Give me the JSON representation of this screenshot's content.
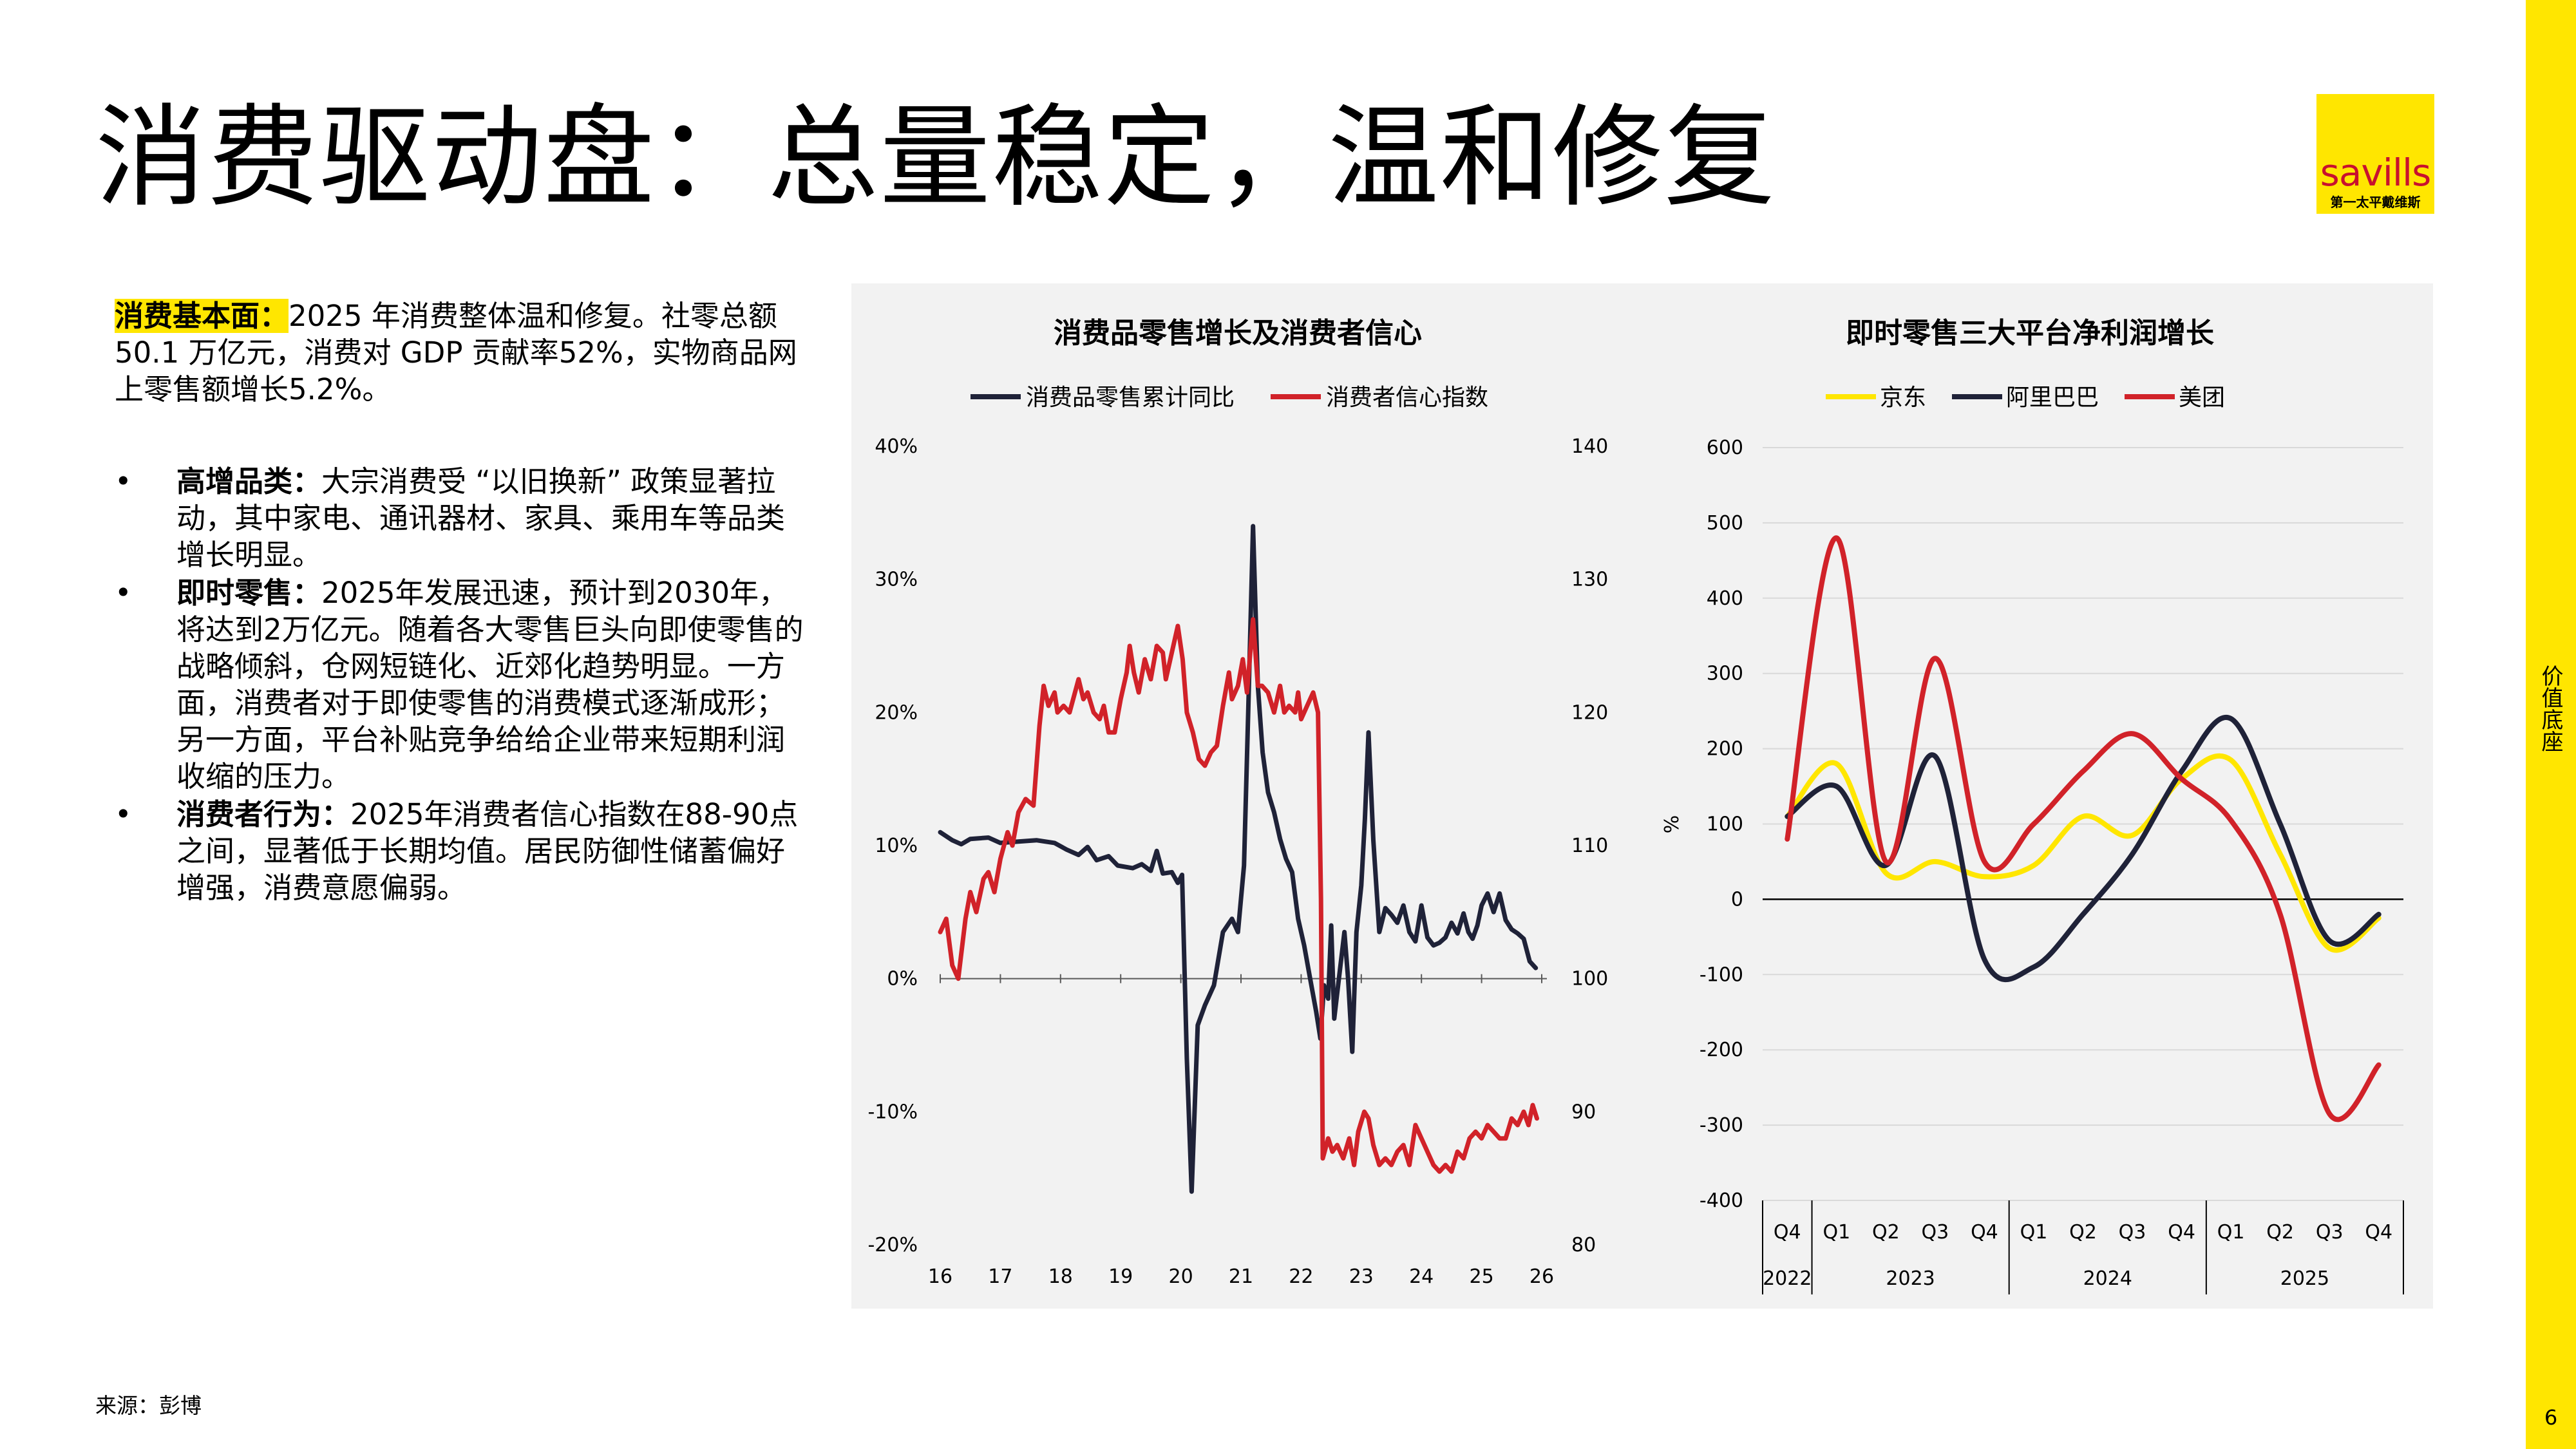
{
  "page": {
    "title": "消费驱动盘：总量稳定，温和修复",
    "source": "来源：彭博",
    "sidebar_text": "价值底座",
    "page_number": "6"
  },
  "logo": {
    "brand": "savills",
    "sub": "第一太平戴维斯",
    "color": "#ffe600"
  },
  "left": {
    "intro_label": "消费基本面：",
    "intro_text": "2025 年消费整体温和修复。社零总额50.1 万亿元，消费对 GDP 贡献率52%，实物商品网上零售额增长5.2%。",
    "bullets": [
      {
        "label": "高增品类：",
        "text": "大宗消费受 “以旧换新” 政策显著拉动，其中家电、通讯器材、家具、乘用车等品类增长明显。"
      },
      {
        "label": "即时零售：",
        "text": "2025年发展迅速，预计到2030年，将达到2万亿元。随着各大零售巨头向即使零售的战略倾斜，仓网短链化、近郊化趋势明显。一方面，消费者对于即使零售的消费模式逐渐成形；另一方面，平台补贴竞争给给企业带来短期利润收缩的压力。"
      },
      {
        "label": "消费者行为：",
        "text": "2025年消费者信心指数在88-90点之间，显著低于长期均值。居民防御性储蓄偏好增强，消费意愿偏弱。"
      }
    ],
    "bullet_symbol": "•"
  },
  "chart_data": [
    {
      "type": "line",
      "title": "消费品零售增长及消费者信心",
      "x_tick_labels": [
        "16",
        "17",
        "18",
        "19",
        "20",
        "21",
        "22",
        "23",
        "24",
        "25",
        "26"
      ],
      "xlim": [
        2016,
        2026
      ],
      "y_left": {
        "ylim": [
          -20,
          40
        ],
        "tick_labels": [
          "-20%",
          "-10%",
          "0%",
          "10%",
          "20%",
          "30%",
          "40%"
        ]
      },
      "y_right": {
        "ylim": [
          80,
          140
        ],
        "tick_labels": [
          "80",
          "90",
          "100",
          "110",
          "120",
          "130",
          "140"
        ]
      },
      "legend_position": "top",
      "series": [
        {
          "name": "消费品零售累计同比",
          "color": "#1f2238",
          "axis": "left",
          "points": [
            [
              2016.0,
              11
            ],
            [
              2016.2,
              10.4
            ],
            [
              2016.35,
              10.1
            ],
            [
              2016.5,
              10.5
            ],
            [
              2016.8,
              10.6
            ],
            [
              2017.0,
              10.2
            ],
            [
              2017.3,
              10.3
            ],
            [
              2017.6,
              10.4
            ],
            [
              2017.9,
              10.2
            ],
            [
              2018.1,
              9.7
            ],
            [
              2018.3,
              9.3
            ],
            [
              2018.45,
              9.9
            ],
            [
              2018.6,
              8.9
            ],
            [
              2018.8,
              9.2
            ],
            [
              2018.95,
              8.5
            ],
            [
              2019.2,
              8.3
            ],
            [
              2019.35,
              8.6
            ],
            [
              2019.5,
              8.1
            ],
            [
              2019.6,
              9.6
            ],
            [
              2019.7,
              7.9
            ],
            [
              2019.85,
              8.0
            ],
            [
              2019.95,
              7.2
            ],
            [
              2020.02,
              7.8
            ],
            [
              2020.1,
              -6.0
            ],
            [
              2020.18,
              -16
            ],
            [
              2020.28,
              -3.5
            ],
            [
              2020.4,
              -2.0
            ],
            [
              2020.55,
              -0.5
            ],
            [
              2020.7,
              3.5
            ],
            [
              2020.85,
              4.5
            ],
            [
              2020.95,
              3.5
            ],
            [
              2021.05,
              8.5
            ],
            [
              2021.12,
              20
            ],
            [
              2021.2,
              34
            ],
            [
              2021.28,
              22
            ],
            [
              2021.36,
              17
            ],
            [
              2021.45,
              14
            ],
            [
              2021.55,
              12.5
            ],
            [
              2021.65,
              10.5
            ],
            [
              2021.75,
              9
            ],
            [
              2021.85,
              8
            ],
            [
              2021.95,
              4.5
            ],
            [
              2022.05,
              2.5
            ],
            [
              2022.15,
              0
            ],
            [
              2022.25,
              -2.5
            ],
            [
              2022.32,
              -4.5
            ],
            [
              2022.38,
              -0.5
            ],
            [
              2022.45,
              -1.5
            ],
            [
              2022.5,
              4
            ],
            [
              2022.55,
              -3
            ],
            [
              2022.62,
              -0.3
            ],
            [
              2022.72,
              3.5
            ],
            [
              2022.78,
              0
            ],
            [
              2022.85,
              -5.5
            ],
            [
              2022.92,
              3.5
            ],
            [
              2023.0,
              7
            ],
            [
              2023.06,
              12
            ],
            [
              2023.12,
              18.5
            ],
            [
              2023.2,
              10.4
            ],
            [
              2023.3,
              3.5
            ],
            [
              2023.4,
              5.3
            ],
            [
              2023.5,
              4.8
            ],
            [
              2023.6,
              4.2
            ],
            [
              2023.7,
              5.5
            ],
            [
              2023.8,
              3.5
            ],
            [
              2023.9,
              2.8
            ],
            [
              2024.0,
              5.5
            ],
            [
              2024.1,
              3.1
            ],
            [
              2024.2,
              2.5
            ],
            [
              2024.3,
              2.7
            ],
            [
              2024.4,
              3.1
            ],
            [
              2024.5,
              4.2
            ],
            [
              2024.6,
              3.4
            ],
            [
              2024.7,
              4.9
            ],
            [
              2024.78,
              3.5
            ],
            [
              2024.85,
              3.0
            ],
            [
              2024.93,
              4.0
            ],
            [
              2025.0,
              5.5
            ],
            [
              2025.1,
              6.4
            ],
            [
              2025.2,
              5.0
            ],
            [
              2025.3,
              6.4
            ],
            [
              2025.4,
              4.4
            ],
            [
              2025.5,
              3.7
            ],
            [
              2025.6,
              3.4
            ],
            [
              2025.7,
              3.0
            ],
            [
              2025.8,
              1.3
            ],
            [
              2025.9,
              0.8
            ]
          ]
        },
        {
          "name": "消费者信心指数",
          "color": "#d12229",
          "axis": "right",
          "points": [
            [
              2016.0,
              103.5
            ],
            [
              2016.1,
              104.5
            ],
            [
              2016.2,
              101.0
            ],
            [
              2016.3,
              100.0
            ],
            [
              2016.42,
              104.5
            ],
            [
              2016.5,
              106.5
            ],
            [
              2016.6,
              105.0
            ],
            [
              2016.72,
              107.5
            ],
            [
              2016.8,
              108.0
            ],
            [
              2016.9,
              106.5
            ],
            [
              2017.0,
              109.0
            ],
            [
              2017.12,
              111.0
            ],
            [
              2017.2,
              110.0
            ],
            [
              2017.3,
              112.5
            ],
            [
              2017.42,
              113.5
            ],
            [
              2017.55,
              113.0
            ],
            [
              2017.65,
              119.0
            ],
            [
              2017.72,
              122.0
            ],
            [
              2017.8,
              120.5
            ],
            [
              2017.9,
              121.5
            ],
            [
              2017.95,
              120.0
            ],
            [
              2018.05,
              120.5
            ],
            [
              2018.15,
              120.0
            ],
            [
              2018.3,
              122.5
            ],
            [
              2018.38,
              121.0
            ],
            [
              2018.45,
              121.5
            ],
            [
              2018.55,
              120.0
            ],
            [
              2018.65,
              119.5
            ],
            [
              2018.72,
              120.5
            ],
            [
              2018.8,
              118.5
            ],
            [
              2018.9,
              118.5
            ],
            [
              2019.0,
              121.0
            ],
            [
              2019.1,
              123.0
            ],
            [
              2019.15,
              125.0
            ],
            [
              2019.22,
              123.0
            ],
            [
              2019.3,
              121.5
            ],
            [
              2019.4,
              124.0
            ],
            [
              2019.5,
              122.5
            ],
            [
              2019.6,
              125.0
            ],
            [
              2019.7,
              124.5
            ],
            [
              2019.75,
              122.5
            ],
            [
              2019.85,
              124.5
            ],
            [
              2019.95,
              126.5
            ],
            [
              2020.03,
              124.0
            ],
            [
              2020.1,
              120.0
            ],
            [
              2020.2,
              118.5
            ],
            [
              2020.3,
              116.5
            ],
            [
              2020.4,
              116.0
            ],
            [
              2020.5,
              117.0
            ],
            [
              2020.6,
              117.5
            ],
            [
              2020.7,
              120.5
            ],
            [
              2020.8,
              123.0
            ],
            [
              2020.85,
              121.0
            ],
            [
              2020.95,
              122.0
            ],
            [
              2021.03,
              124.0
            ],
            [
              2021.1,
              121.5
            ],
            [
              2021.2,
              127.0
            ],
            [
              2021.28,
              122.0
            ],
            [
              2021.35,
              122.0
            ],
            [
              2021.45,
              121.5
            ],
            [
              2021.55,
              120.0
            ],
            [
              2021.65,
              122.0
            ],
            [
              2021.72,
              120.0
            ],
            [
              2021.8,
              120.5
            ],
            [
              2021.9,
              120.0
            ],
            [
              2021.95,
              121.5
            ],
            [
              2022.0,
              119.5
            ],
            [
              2022.1,
              120.5
            ],
            [
              2022.2,
              121.5
            ],
            [
              2022.28,
              120.0
            ],
            [
              2022.33,
              106.0
            ],
            [
              2022.36,
              86.5
            ],
            [
              2022.45,
              88.0
            ],
            [
              2022.52,
              87.0
            ],
            [
              2022.6,
              87.5
            ],
            [
              2022.7,
              86.5
            ],
            [
              2022.8,
              88.0
            ],
            [
              2022.88,
              86.0
            ],
            [
              2022.95,
              88.5
            ],
            [
              2023.05,
              90.0
            ],
            [
              2023.12,
              89.5
            ],
            [
              2023.2,
              87.5
            ],
            [
              2023.3,
              86.0
            ],
            [
              2023.4,
              86.5
            ],
            [
              2023.5,
              86.0
            ],
            [
              2023.6,
              87.0
            ],
            [
              2023.7,
              87.5
            ],
            [
              2023.8,
              86.0
            ],
            [
              2023.9,
              89.0
            ],
            [
              2024.0,
              88.0
            ],
            [
              2024.1,
              87.0
            ],
            [
              2024.2,
              86.0
            ],
            [
              2024.3,
              85.5
            ],
            [
              2024.4,
              86.0
            ],
            [
              2024.5,
              85.5
            ],
            [
              2024.6,
              87.0
            ],
            [
              2024.7,
              86.5
            ],
            [
              2024.8,
              88.0
            ],
            [
              2024.9,
              88.5
            ],
            [
              2025.0,
              88.0
            ],
            [
              2025.1,
              89.0
            ],
            [
              2025.2,
              88.5
            ],
            [
              2025.3,
              88.0
            ],
            [
              2025.4,
              88.0
            ],
            [
              2025.5,
              89.5
            ],
            [
              2025.6,
              89.0
            ],
            [
              2025.7,
              90.0
            ],
            [
              2025.78,
              89.0
            ],
            [
              2025.85,
              90.5
            ],
            [
              2025.92,
              89.5
            ]
          ]
        }
      ]
    },
    {
      "type": "line",
      "title": "即时零售三大平台净利润增长",
      "ylabel": "%",
      "ylim": [
        -400,
        600
      ],
      "y_tick_labels": [
        "-400",
        "-300",
        "-200",
        "-100",
        "0",
        "100",
        "200",
        "300",
        "400",
        "500",
        "600"
      ],
      "quarters": [
        "Q4",
        "Q1",
        "Q2",
        "Q3",
        "Q4",
        "Q1",
        "Q2",
        "Q3",
        "Q4",
        "Q1",
        "Q2",
        "Q3",
        "Q4"
      ],
      "years": [
        {
          "label": "2022",
          "span": [
            0,
            0
          ]
        },
        {
          "label": "2023",
          "span": [
            1,
            4
          ]
        },
        {
          "label": "2024",
          "span": [
            5,
            8
          ]
        },
        {
          "label": "2025",
          "span": [
            9,
            12
          ]
        }
      ],
      "legend_position": "top",
      "series": [
        {
          "name": "京东",
          "color": "#ffe600",
          "values": [
            110,
            180,
            35,
            50,
            30,
            45,
            110,
            85,
            160,
            185,
            60,
            -65,
            -25
          ]
        },
        {
          "name": "阿里巴巴",
          "color": "#1f2238",
          "values": [
            110,
            150,
            45,
            190,
            -80,
            -90,
            -20,
            60,
            170,
            240,
            100,
            -55,
            -20
          ]
        },
        {
          "name": "美团",
          "color": "#d12229",
          "values": [
            80,
            480,
            50,
            320,
            50,
            100,
            170,
            220,
            160,
            105,
            -20,
            -285,
            -220
          ]
        }
      ]
    }
  ]
}
